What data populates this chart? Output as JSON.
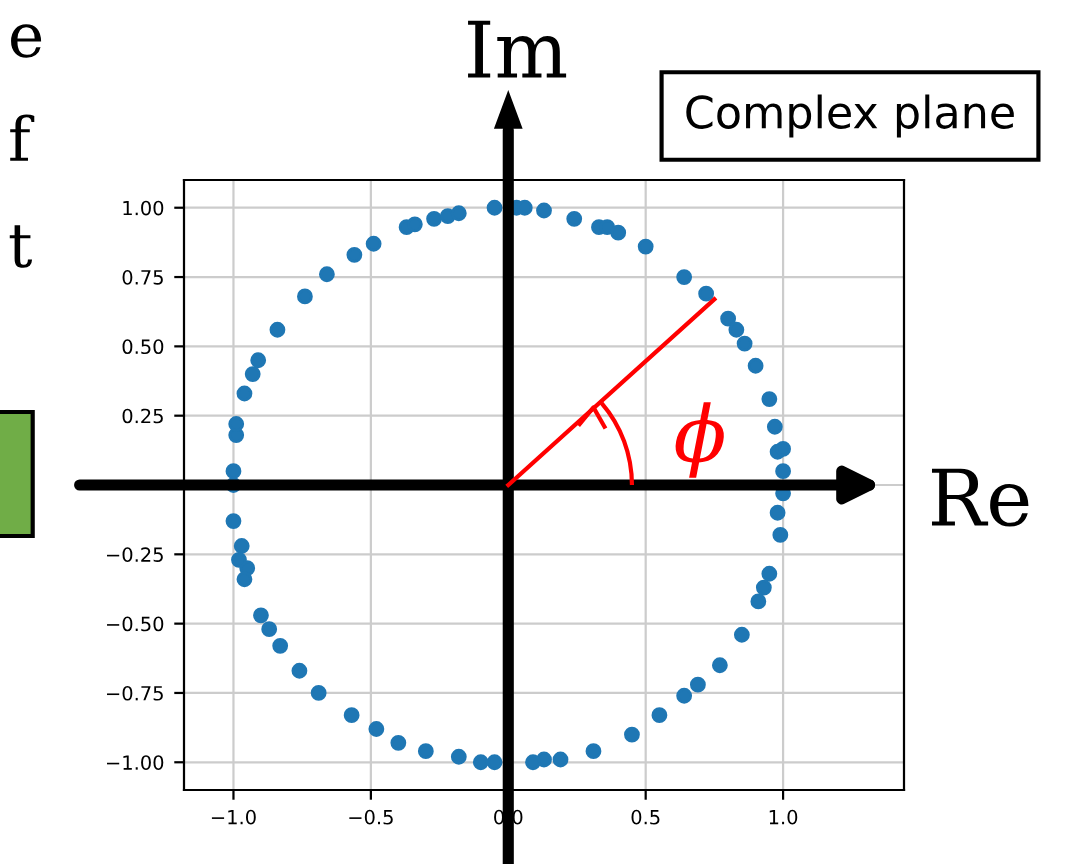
{
  "chart_data": {
    "type": "scatter",
    "x": [
      -0.99,
      -0.99,
      -0.96,
      -0.93,
      -0.91,
      -0.84,
      -0.74,
      -0.66,
      -0.56,
      -0.49,
      -0.37,
      -0.34,
      -0.27,
      -0.22,
      -0.18,
      -0.05,
      0.03,
      0.06,
      0.13,
      0.24,
      0.33,
      0.36,
      0.4,
      0.5,
      0.64,
      0.72,
      0.8,
      0.83,
      0.86,
      0.9,
      0.95,
      0.97,
      0.98,
      1.0,
      1.0,
      1.0,
      0.98,
      0.99,
      0.95,
      0.93,
      0.91,
      0.85,
      0.77,
      0.69,
      0.64,
      0.55,
      0.45,
      0.31,
      0.19,
      0.13,
      0.09,
      -0.05,
      -0.1,
      -0.18,
      -0.3,
      -0.4,
      -0.48,
      -0.57,
      -0.69,
      -0.76,
      -0.83,
      -0.87,
      -0.9,
      -0.95,
      -0.96,
      -0.97,
      -0.98,
      -1.0,
      -1.0,
      -1.0
    ],
    "values": [
      0.18,
      0.22,
      0.33,
      0.4,
      0.45,
      0.56,
      0.68,
      0.76,
      0.83,
      0.87,
      0.93,
      0.94,
      0.96,
      0.97,
      0.98,
      1.0,
      1.0,
      1.0,
      0.99,
      0.96,
      0.93,
      0.93,
      0.91,
      0.86,
      0.75,
      0.69,
      0.6,
      0.56,
      0.51,
      0.43,
      0.31,
      0.21,
      0.12,
      0.13,
      0.05,
      -0.03,
      -0.1,
      -0.18,
      -0.32,
      -0.37,
      -0.42,
      -0.54,
      -0.65,
      -0.72,
      -0.76,
      -0.83,
      -0.9,
      -0.96,
      -0.99,
      -0.99,
      -1.0,
      -1.0,
      -1.0,
      -0.98,
      -0.96,
      -0.93,
      -0.88,
      -0.83,
      -0.75,
      -0.67,
      -0.58,
      -0.52,
      -0.47,
      -0.3,
      -0.34,
      -0.22,
      -0.27,
      -0.13,
      0.0,
      0.05
    ],
    "color": "#1f77b4",
    "marker": "circle",
    "grid": true,
    "xlim": [
      -1.18,
      1.44
    ],
    "ylim": [
      -1.1,
      1.1
    ],
    "xticks": [
      {
        "value": -1.0,
        "label": "−1.0"
      },
      {
        "value": -0.5,
        "label": "−0.5"
      },
      {
        "value": 0.0,
        "label": "0.0"
      },
      {
        "value": 0.5,
        "label": "0.5"
      },
      {
        "value": 1.0,
        "label": "1.0"
      }
    ],
    "yticks": [
      {
        "value": -1.0,
        "label": "−1.00"
      },
      {
        "value": -0.75,
        "label": "−0.75"
      },
      {
        "value": -0.5,
        "label": "−0.50"
      },
      {
        "value": -0.25,
        "label": "−0.25"
      },
      {
        "value": 0.0,
        "label": null
      },
      {
        "value": 0.25,
        "label": "0.25"
      },
      {
        "value": 0.5,
        "label": "0.50"
      },
      {
        "value": 0.75,
        "label": "0.75"
      },
      {
        "value": 1.0,
        "label": "1.00"
      }
    ],
    "annotations": [
      "Im",
      "Re",
      "Complex plane",
      "ϕ",
      "e",
      "f",
      "t"
    ]
  }
}
